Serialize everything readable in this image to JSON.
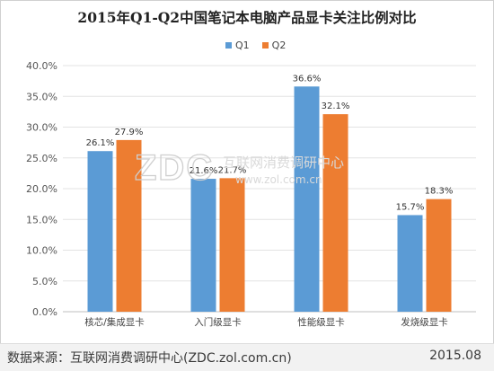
{
  "chart_data": {
    "type": "bar",
    "title": "2015年Q1-Q2中国笔记本电脑产品显卡关注比例对比",
    "categories": [
      "核芯/集成显卡",
      "入门级显卡",
      "性能级显卡",
      "发烧级显卡"
    ],
    "series": [
      {
        "name": "Q1",
        "color": "#5b9bd5",
        "values": [
          26.1,
          21.6,
          36.6,
          15.7
        ]
      },
      {
        "name": "Q2",
        "color": "#ed7d31",
        "values": [
          27.9,
          21.7,
          32.1,
          18.3
        ]
      }
    ],
    "ylim": [
      0,
      40
    ],
    "yticks": [
      0,
      5,
      10,
      15,
      20,
      25,
      30,
      35,
      40
    ],
    "ytick_labels": [
      "0.0%",
      "5.0%",
      "10.0%",
      "15.0%",
      "20.0%",
      "25.0%",
      "30.0%",
      "35.0%",
      "40.0%"
    ],
    "value_labels": [
      [
        "26.1%",
        "21.6%",
        "36.6%",
        "15.7%"
      ],
      [
        "27.9%",
        "21.7%",
        "32.1%",
        "18.3%"
      ]
    ],
    "legend_position": "top-center",
    "grid": true
  },
  "watermark": {
    "logo": "ZDC",
    "text_cn": "互联网消费调研中心",
    "text_url": "www.zol.com.cn"
  },
  "footer": {
    "source": "数据来源：互联网消费调研中心(ZDC.zol.com.cn)",
    "date": "2015.08"
  }
}
